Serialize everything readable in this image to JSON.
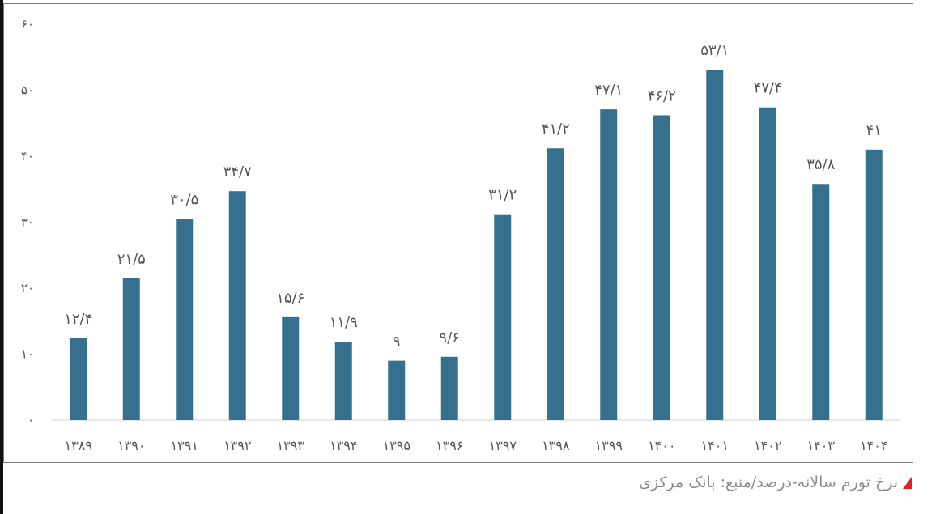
{
  "chart_data": {
    "type": "bar",
    "categories": [
      "۱۳۸۹",
      "۱۳۹۰",
      "۱۳۹۱",
      "۱۳۹۲",
      "۱۳۹۳",
      "۱۳۹۴",
      "۱۳۹۵",
      "۱۳۹۶",
      "۱۳۹۷",
      "۱۳۹۸",
      "۱۳۹۹",
      "۱۴۰۰",
      "۱۴۰۱",
      "۱۴۰۲",
      "۱۴۰۳",
      "۱۴۰۴"
    ],
    "values": [
      12.4,
      21.5,
      30.5,
      34.7,
      15.6,
      11.9,
      9,
      9.6,
      31.2,
      41.2,
      47.1,
      46.2,
      53.1,
      47.4,
      35.8,
      41
    ],
    "data_labels": [
      "۱۲/۴",
      "۲۱/۵",
      "۳۰/۵",
      "۳۴/۷",
      "۱۵/۶",
      "۱۱/۹",
      "۹",
      "۹/۶",
      "۳۱/۲",
      "۴۱/۲",
      "۴۷/۱",
      "۴۶/۲",
      "۵۳/۱",
      "۴۷/۴",
      "۳۵/۸",
      "۴۱"
    ],
    "yticks": [
      0,
      10,
      20,
      30,
      40,
      50,
      60
    ],
    "ytick_labels": [
      "۰",
      "۱۰",
      "۲۰",
      "۳۰",
      "۴۰",
      "۵۰",
      "۶۰"
    ],
    "ylim": [
      0,
      60
    ],
    "grid": false,
    "bar_color": "#36708f"
  },
  "caption": {
    "text": "نرخ تورم سالانه-درصد/منبع: بانک مرکزی",
    "marker_color": "#e02424"
  }
}
